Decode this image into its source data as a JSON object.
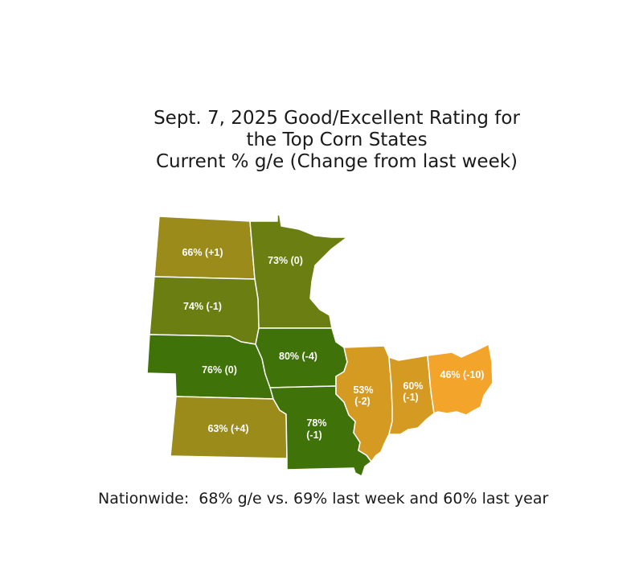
{
  "title": {
    "line1": "Sept. 7, 2025 Good/Excellent Rating for",
    "line2": "the Top Corn States",
    "line3": "Current % g/e (Change from last week)"
  },
  "colors": {
    "high": "#3f7208",
    "upper_mid": "#6b7e12",
    "mid": "#9a8b1a",
    "low_mid": "#d49a22",
    "low": "#f3a42a"
  },
  "states": [
    {
      "id": "north-dakota",
      "label": "66% (+1)",
      "value": 66,
      "change": 1,
      "color": "#9a8b1a"
    },
    {
      "id": "minnesota",
      "label": "73% (0)",
      "value": 73,
      "change": 0,
      "color": "#6b7e12"
    },
    {
      "id": "south-dakota",
      "label": "74% (-1)",
      "value": 74,
      "change": -1,
      "color": "#6b7e12"
    },
    {
      "id": "nebraska",
      "label": "76% (0)",
      "value": 76,
      "change": 0,
      "color": "#3f7208"
    },
    {
      "id": "iowa",
      "label": "80% (-4)",
      "value": 80,
      "change": -4,
      "color": "#3f7208"
    },
    {
      "id": "kansas",
      "label": "63% (+4)",
      "value": 63,
      "change": 4,
      "color": "#9a8b1a"
    },
    {
      "id": "missouri",
      "label_line1": "78%",
      "label_line2": "(-1)",
      "value": 78,
      "change": -1,
      "color": "#3f7208"
    },
    {
      "id": "illinois",
      "label_line1": "53%",
      "label_line2": "(-2)",
      "value": 53,
      "change": -2,
      "color": "#d49a22"
    },
    {
      "id": "indiana",
      "label_line1": "60%",
      "label_line2": "(-1)",
      "value": 60,
      "change": -1,
      "color": "#d49a22"
    },
    {
      "id": "ohio",
      "label": "46% (-10)",
      "value": 46,
      "change": -10,
      "color": "#f3a42a"
    }
  ],
  "footer": "Nationwide:  68% g/e vs. 69% last week and 60% last year"
}
